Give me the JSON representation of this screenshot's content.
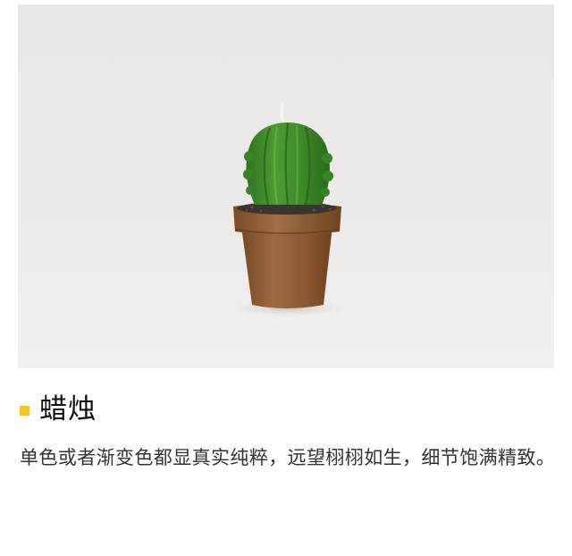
{
  "photo": {
    "subject": "cactus-candle-in-terracotta-pot",
    "colors": {
      "background": "#ecebe9",
      "cactus": "#3f8a2c",
      "pot": "#8a5a34",
      "soil": "#3a3530"
    }
  },
  "section": {
    "heading": "蜡烛",
    "description": "单色或者渐变色都显真实纯粹，远望栩栩如生，细节饱满精致。",
    "accent_color": "#f5c518"
  }
}
